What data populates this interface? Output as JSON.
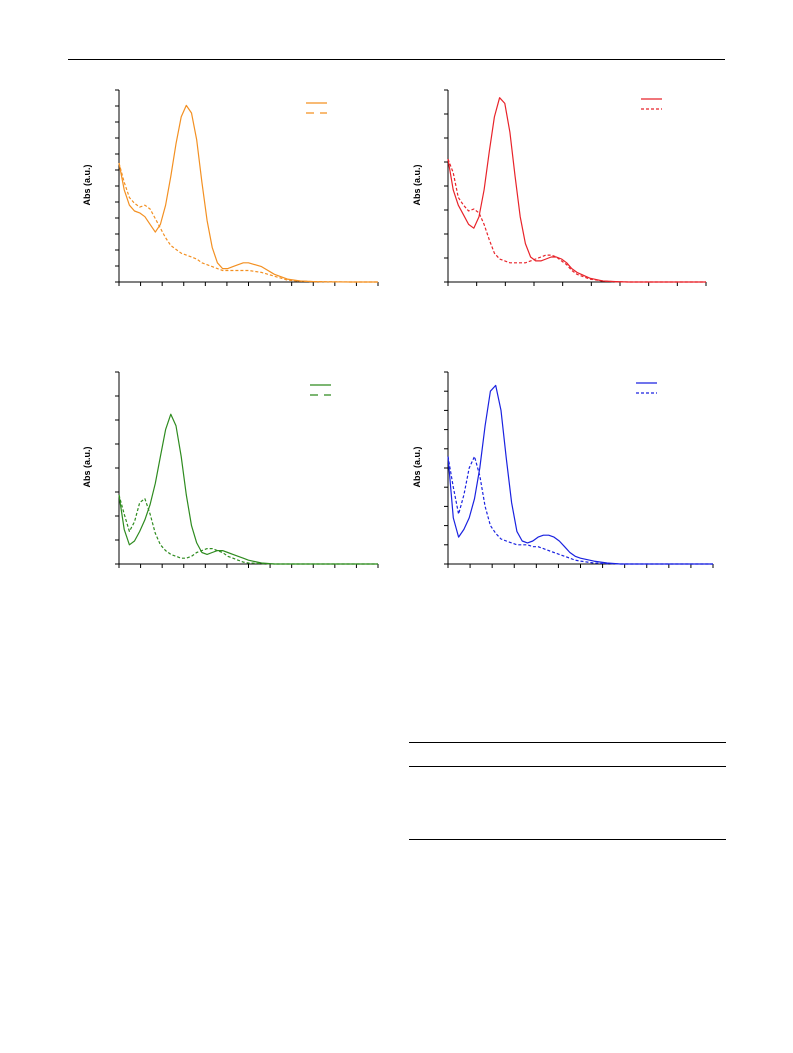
{
  "chart_data": [
    {
      "type": "line",
      "ylabel": "Abs (a.u.)",
      "color": "#F39022",
      "series": [
        {
          "style": "solid",
          "x": [
            0,
            2,
            4,
            6,
            8,
            10,
            12,
            14,
            16,
            18,
            20,
            22,
            24,
            26,
            28,
            30,
            32,
            34,
            36,
            38,
            40,
            42,
            44,
            46,
            48,
            50,
            55,
            60,
            65,
            70,
            75,
            80,
            90,
            100
          ],
          "y": [
            0.62,
            0.48,
            0.4,
            0.37,
            0.36,
            0.34,
            0.3,
            0.26,
            0.3,
            0.4,
            0.55,
            0.72,
            0.86,
            0.92,
            0.88,
            0.74,
            0.52,
            0.32,
            0.18,
            0.1,
            0.07,
            0.07,
            0.08,
            0.09,
            0.1,
            0.1,
            0.08,
            0.04,
            0.015,
            0.005,
            0.002,
            0.001,
            0.0,
            0.0
          ]
        },
        {
          "style": "dashed",
          "x": [
            0,
            2,
            4,
            6,
            8,
            10,
            12,
            14,
            16,
            18,
            20,
            22,
            24,
            26,
            28,
            30,
            32,
            34,
            36,
            38,
            40,
            42,
            44,
            46,
            48,
            50,
            55,
            60,
            65,
            70,
            75,
            80,
            90,
            100
          ],
          "y": [
            0.62,
            0.52,
            0.44,
            0.41,
            0.39,
            0.4,
            0.38,
            0.33,
            0.28,
            0.23,
            0.19,
            0.17,
            0.15,
            0.14,
            0.13,
            0.12,
            0.1,
            0.09,
            0.08,
            0.07,
            0.06,
            0.06,
            0.06,
            0.06,
            0.06,
            0.06,
            0.05,
            0.03,
            0.01,
            0.004,
            0.002,
            0.001,
            0.0,
            0.0
          ]
        }
      ],
      "xlim": [
        0,
        100
      ],
      "ylim": [
        0,
        1
      ]
    },
    {
      "type": "line",
      "ylabel": "Abs (a.u.)",
      "color": "#E8232A",
      "series": [
        {
          "style": "solid",
          "x": [
            0,
            2,
            4,
            6,
            8,
            10,
            12,
            14,
            16,
            18,
            20,
            22,
            24,
            26,
            28,
            30,
            32,
            34,
            36,
            38,
            40,
            42,
            44,
            46,
            48,
            50,
            55,
            60,
            65,
            70,
            75,
            80,
            90,
            100
          ],
          "y": [
            0.64,
            0.48,
            0.4,
            0.35,
            0.3,
            0.28,
            0.34,
            0.48,
            0.68,
            0.86,
            0.96,
            0.93,
            0.78,
            0.55,
            0.34,
            0.2,
            0.13,
            0.11,
            0.11,
            0.12,
            0.13,
            0.13,
            0.12,
            0.1,
            0.07,
            0.05,
            0.02,
            0.005,
            0.002,
            0.0,
            0.0,
            0.0,
            0.0,
            0.0
          ]
        },
        {
          "style": "dashed",
          "x": [
            0,
            2,
            4,
            6,
            8,
            10,
            12,
            14,
            16,
            18,
            20,
            22,
            24,
            26,
            28,
            30,
            32,
            34,
            36,
            38,
            40,
            42,
            44,
            46,
            48,
            50,
            55,
            60,
            65,
            70,
            75,
            80,
            90,
            100
          ],
          "y": [
            0.64,
            0.57,
            0.44,
            0.4,
            0.37,
            0.38,
            0.36,
            0.3,
            0.22,
            0.15,
            0.12,
            0.11,
            0.1,
            0.1,
            0.1,
            0.1,
            0.11,
            0.12,
            0.13,
            0.14,
            0.14,
            0.13,
            0.11,
            0.09,
            0.06,
            0.04,
            0.015,
            0.005,
            0.001,
            0.0,
            0.0,
            0.0,
            0.0,
            0.0
          ]
        }
      ],
      "xlim": [
        0,
        100
      ],
      "ylim": [
        0,
        1
      ]
    },
    {
      "type": "line",
      "ylabel": "Abs (a.u.)",
      "color": "#2E8B1F",
      "series": [
        {
          "style": "solid",
          "x": [
            0,
            2,
            4,
            6,
            8,
            10,
            12,
            14,
            16,
            18,
            20,
            22,
            24,
            26,
            28,
            30,
            32,
            34,
            36,
            38,
            40,
            42,
            44,
            46,
            48,
            50,
            55,
            60,
            65,
            70,
            75,
            80,
            90,
            100
          ],
          "y": [
            0.36,
            0.18,
            0.1,
            0.12,
            0.17,
            0.23,
            0.31,
            0.42,
            0.56,
            0.7,
            0.78,
            0.72,
            0.56,
            0.36,
            0.2,
            0.11,
            0.06,
            0.05,
            0.06,
            0.07,
            0.07,
            0.06,
            0.05,
            0.04,
            0.03,
            0.02,
            0.005,
            0.0,
            0.0,
            0.0,
            0.0,
            0.0,
            0.0,
            0.0
          ]
        },
        {
          "style": "dashed",
          "x": [
            0,
            2,
            4,
            6,
            8,
            10,
            12,
            14,
            16,
            18,
            20,
            22,
            24,
            26,
            28,
            30,
            32,
            34,
            36,
            38,
            40,
            42,
            44,
            46,
            48,
            50,
            55,
            60,
            65,
            70,
            75,
            80,
            90,
            100
          ],
          "y": [
            0.36,
            0.26,
            0.17,
            0.22,
            0.32,
            0.34,
            0.26,
            0.16,
            0.1,
            0.07,
            0.05,
            0.04,
            0.03,
            0.03,
            0.04,
            0.06,
            0.07,
            0.08,
            0.08,
            0.07,
            0.06,
            0.04,
            0.03,
            0.02,
            0.01,
            0.005,
            0.002,
            0.0,
            0.0,
            0.0,
            0.0,
            0.0,
            0.0,
            0.0
          ]
        }
      ],
      "xlim": [
        0,
        100
      ],
      "ylim": [
        0,
        1
      ]
    },
    {
      "type": "line",
      "ylabel": "Abs (a.u.)",
      "color": "#1A22E0",
      "series": [
        {
          "style": "solid",
          "x": [
            0,
            2,
            4,
            6,
            8,
            10,
            12,
            14,
            16,
            18,
            20,
            22,
            24,
            26,
            28,
            30,
            32,
            34,
            36,
            38,
            40,
            42,
            44,
            46,
            48,
            50,
            55,
            60,
            65,
            70,
            75,
            80,
            90,
            100
          ],
          "y": [
            0.56,
            0.24,
            0.14,
            0.18,
            0.24,
            0.34,
            0.5,
            0.72,
            0.9,
            0.93,
            0.8,
            0.55,
            0.32,
            0.17,
            0.12,
            0.11,
            0.12,
            0.14,
            0.15,
            0.15,
            0.14,
            0.12,
            0.09,
            0.06,
            0.04,
            0.03,
            0.015,
            0.005,
            0.0,
            0.0,
            0.0,
            0.0,
            0.0,
            0.0
          ]
        },
        {
          "style": "dashed",
          "x": [
            0,
            2,
            4,
            6,
            8,
            10,
            12,
            14,
            16,
            18,
            20,
            22,
            24,
            26,
            28,
            30,
            32,
            34,
            36,
            38,
            40,
            42,
            44,
            46,
            48,
            50,
            55,
            60,
            65,
            70,
            75,
            80,
            90,
            100
          ],
          "y": [
            0.56,
            0.4,
            0.26,
            0.36,
            0.5,
            0.56,
            0.46,
            0.3,
            0.2,
            0.16,
            0.13,
            0.12,
            0.11,
            0.1,
            0.1,
            0.1,
            0.09,
            0.09,
            0.08,
            0.07,
            0.06,
            0.05,
            0.04,
            0.03,
            0.02,
            0.015,
            0.005,
            0.002,
            0.0,
            0.0,
            0.0,
            0.0,
            0.0,
            0.0
          ]
        }
      ],
      "xlim": [
        0,
        100
      ],
      "ylim": [
        0,
        1
      ]
    }
  ]
}
